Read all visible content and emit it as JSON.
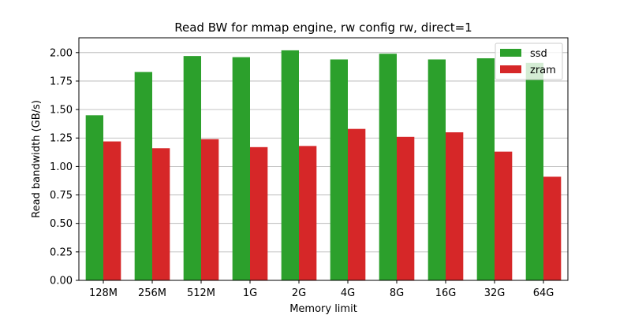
{
  "chart_data": {
    "type": "bar",
    "title": "Read BW for mmap engine, rw config rw, direct=1",
    "xlabel": "Memory limit",
    "ylabel": "Read bandwidth (GB/s)",
    "categories": [
      "128M",
      "256M",
      "512M",
      "1G",
      "2G",
      "4G",
      "8G",
      "16G",
      "32G",
      "64G"
    ],
    "series": [
      {
        "name": "ssd",
        "color": "#2ca02c",
        "values": [
          1.45,
          1.83,
          1.97,
          1.96,
          2.02,
          1.94,
          1.99,
          1.94,
          1.95,
          1.91
        ]
      },
      {
        "name": "zram",
        "color": "#d62728",
        "values": [
          1.22,
          1.16,
          1.24,
          1.17,
          1.18,
          1.33,
          1.26,
          1.3,
          1.13,
          0.91
        ]
      }
    ],
    "ylim": [
      0,
      2.13
    ],
    "yticks": [
      "0.00",
      "0.25",
      "0.50",
      "0.75",
      "1.00",
      "1.25",
      "1.50",
      "1.75",
      "2.00"
    ],
    "grid": "y",
    "legend": "top-right"
  }
}
